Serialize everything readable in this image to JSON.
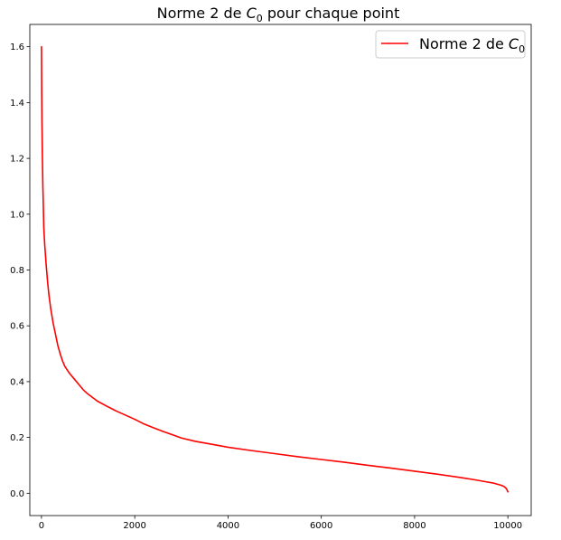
{
  "chart_data": {
    "type": "line",
    "title": "Norme 2 de C₀ pour chaque point",
    "xlabel": "",
    "ylabel": "",
    "xlim": [
      -250,
      10500
    ],
    "ylim": [
      -0.08,
      1.68
    ],
    "xticks": [
      0,
      2000,
      4000,
      6000,
      8000,
      10000
    ],
    "xtick_labels": [
      "0",
      "2000",
      "4000",
      "6000",
      "8000",
      "10000"
    ],
    "yticks": [
      0.0,
      0.2,
      0.4,
      0.6,
      0.8,
      1.0,
      1.2,
      1.4,
      1.6
    ],
    "ytick_labels": [
      "0.0",
      "0.2",
      "0.4",
      "0.6",
      "0.8",
      "1.0",
      "1.2",
      "1.4",
      "1.6"
    ],
    "grid": false,
    "legend_position": "upper right",
    "series": [
      {
        "name": "Norme 2 de C₀",
        "color": "#ff0000",
        "x": [
          0,
          5,
          10,
          20,
          30,
          40,
          50,
          70,
          100,
          130,
          160,
          200,
          250,
          300,
          350,
          400,
          450,
          500,
          600,
          700,
          800,
          900,
          1000,
          1200,
          1400,
          1600,
          1800,
          2000,
          2200,
          2400,
          2600,
          2800,
          3000,
          3300,
          3600,
          4000,
          4500,
          5000,
          5500,
          6000,
          6500,
          7000,
          7500,
          8000,
          8500,
          9000,
          9300,
          9500,
          9700,
          9850,
          9920,
          9960,
          9980,
          10000
        ],
        "y": [
          1.6,
          1.45,
          1.33,
          1.2,
          1.1,
          1.03,
          0.95,
          0.89,
          0.82,
          0.76,
          0.71,
          0.66,
          0.61,
          0.57,
          0.53,
          0.5,
          0.475,
          0.455,
          0.43,
          0.41,
          0.39,
          0.37,
          0.355,
          0.33,
          0.312,
          0.295,
          0.28,
          0.265,
          0.248,
          0.235,
          0.222,
          0.21,
          0.198,
          0.186,
          0.177,
          0.165,
          0.153,
          0.142,
          0.131,
          0.121,
          0.111,
          0.1,
          0.09,
          0.079,
          0.068,
          0.056,
          0.048,
          0.042,
          0.036,
          0.029,
          0.024,
          0.018,
          0.013,
          0.005
        ]
      }
    ]
  }
}
